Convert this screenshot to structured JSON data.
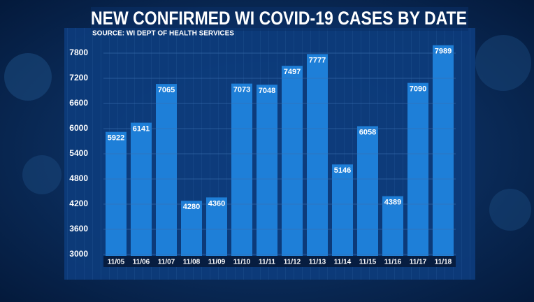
{
  "chart_data": {
    "type": "bar",
    "title": "NEW CONFIRMED WI COVID-19 CASES BY DATE",
    "subtitle": "SOURCE: WI DEPT OF HEALTH SERVICES",
    "categories": [
      "11/05",
      "11/06",
      "11/07",
      "11/08",
      "11/09",
      "11/10",
      "11/11",
      "11/12",
      "11/13",
      "11/14",
      "11/15",
      "11/16",
      "11/17",
      "11/18"
    ],
    "values": [
      5922,
      6141,
      7065,
      4280,
      4360,
      7073,
      7048,
      7497,
      7777,
      5146,
      6058,
      4389,
      7090,
      7989
    ],
    "color": "#1e7fd8",
    "ylim": [
      2800,
      8000
    ],
    "yticks": [
      3000,
      3600,
      4200,
      4800,
      5400,
      6000,
      6600,
      7200,
      7800
    ],
    "grid": true
  }
}
